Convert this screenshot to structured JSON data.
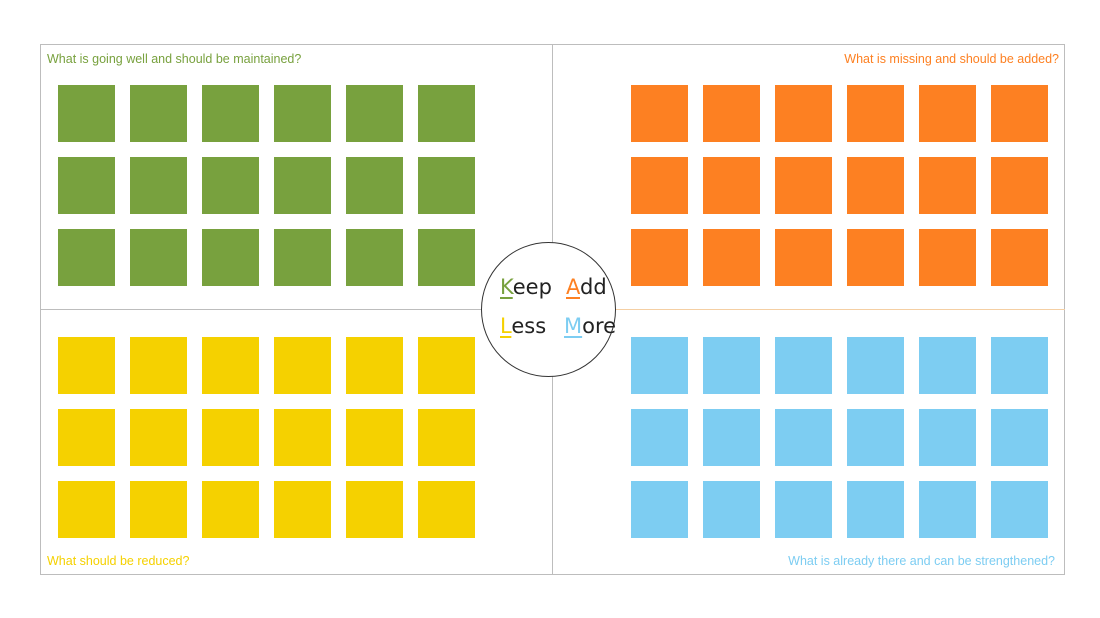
{
  "quadrants": {
    "keep": {
      "question": "What is going well and should be maintained?",
      "color": "#78a13e",
      "rows": 3,
      "cols": 6
    },
    "add": {
      "question": "What is missing and should be added?",
      "color": "#fd8022",
      "rows": 3,
      "cols": 6
    },
    "less": {
      "question": "What should be reduced?",
      "color": "#f5d100",
      "rows": 3,
      "cols": 6
    },
    "more": {
      "question": "What is already there and can be strengthened?",
      "color": "#7dcdf2",
      "rows": 3,
      "cols": 6
    }
  },
  "center": {
    "keep": {
      "initial": "K",
      "rest": "eep"
    },
    "add": {
      "initial": "A",
      "rest": "dd"
    },
    "less": {
      "initial": "L",
      "rest": "ess"
    },
    "more": {
      "initial": "M",
      "rest": "ore"
    }
  }
}
